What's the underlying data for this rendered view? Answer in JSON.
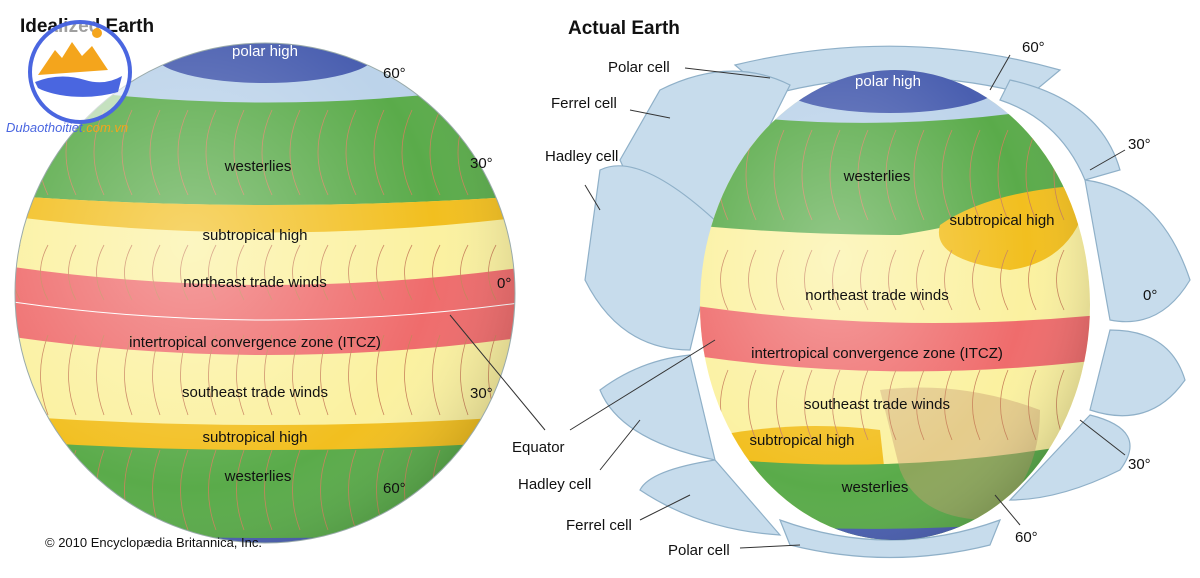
{
  "left": {
    "title": "Idealized Earth",
    "labels": {
      "polar_high": "polar high",
      "westerlies_n": "westerlies",
      "subtropical_high_n": "subtropical high",
      "ne_trades": "northeast trade winds",
      "itcz": "intertropical convergence zone (ITCZ)",
      "se_trades": "southeast trade winds",
      "subtropical_high_s": "subtropical high",
      "westerlies_s": "westerlies"
    },
    "latitudes": {
      "n60": "60°",
      "n30": "30°",
      "eq": "0°",
      "s30": "30°",
      "s60": "60°"
    }
  },
  "right": {
    "title": "Actual Earth",
    "labels": {
      "polar_high": "polar high",
      "westerlies_n": "westerlies",
      "subtropical_high_n": "subtropical high",
      "ne_trades": "northeast trade winds",
      "itcz": "intertropical convergence zone (ITCZ)",
      "se_trades": "southeast trade winds",
      "subtropical_high_s": "subtropical high",
      "westerlies_s": "westerlies"
    },
    "latitudes": {
      "n60": "60°",
      "n30": "30°",
      "eq": "0°",
      "s30": "30°",
      "s60": "60°"
    },
    "cells": {
      "polar_n": "Polar cell",
      "ferrel_n": "Ferrel cell",
      "hadley_n": "Hadley cell",
      "equator": "Equator",
      "hadley_s": "Hadley cell",
      "ferrel_s": "Ferrel cell",
      "polar_s": "Polar cell"
    }
  },
  "copyright": "© 2010 Encyclopædia Britannica, Inc.",
  "watermark": "Dubaothoitiet.com.vn",
  "colors": {
    "polar_high": "#4a5fb0",
    "polar_zone": "#bcd3ea",
    "westerlies": "#5aab4a",
    "subtropical_high": "#f2bf1f",
    "trade_winds": "#fbf1a0",
    "itcz": "#ef6c6c",
    "cells": "#c7dcec",
    "arrow": "#e8401e"
  }
}
